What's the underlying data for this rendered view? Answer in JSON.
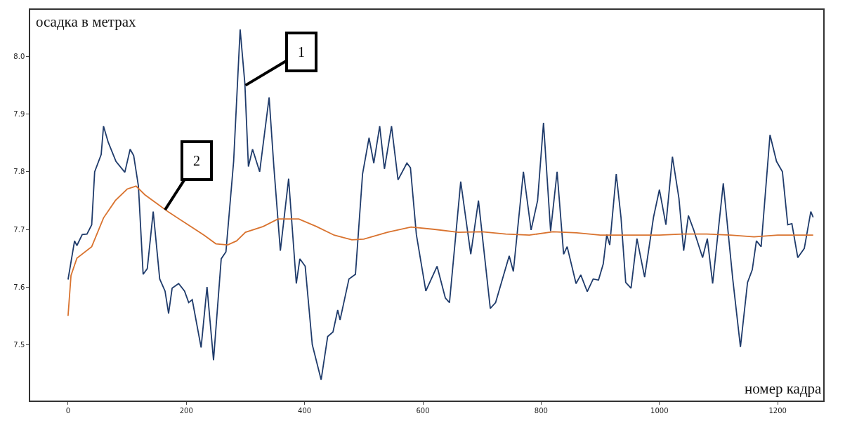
{
  "chart_data": {
    "type": "line",
    "xlabel": "номер кадра",
    "ylabel": "осадка в метрах",
    "xlim": [
      -64,
      1277
    ],
    "ylim": [
      7.403,
      8.081
    ],
    "xticks": [
      0,
      200,
      400,
      600,
      800,
      1000,
      1200
    ],
    "yticks": [
      7.5,
      7.6,
      7.7,
      7.8,
      7.9,
      {
        "value": 8.0,
        "label": "8.0"
      }
    ],
    "marker": "none",
    "line_style": "solid",
    "series": [
      {
        "color": "#1f3b6b",
        "x": [
          0,
          11,
          15,
          24,
          32,
          40,
          45,
          56,
          60,
          68,
          81,
          96,
          105,
          111,
          119,
          127,
          134,
          144,
          155,
          164,
          170,
          176,
          187,
          197,
          204,
          210,
          225,
          235,
          246,
          259,
          267,
          280,
          291,
          299,
          305,
          312,
          324,
          340,
          348,
          359,
          373,
          386,
          392,
          401,
          413,
          428,
          439,
          448,
          456,
          460,
          475,
          486,
          498,
          509,
          517,
          527,
          535,
          547,
          558,
          573,
          579,
          589,
          605,
          624,
          638,
          645,
          664,
          681,
          694,
          714,
          723,
          746,
          753,
          770,
          783,
          794,
          804,
          816,
          827,
          838,
          844,
          859,
          867,
          878,
          888,
          897,
          905,
          911,
          916,
          927,
          935,
          943,
          952,
          962,
          975,
          990,
          1000,
          1011,
          1022,
          1033,
          1041,
          1049,
          1058,
          1073,
          1081,
          1090,
          1108,
          1124,
          1137,
          1149,
          1157,
          1164,
          1172,
          1187,
          1198,
          1208,
          1217,
          1224,
          1234,
          1245,
          1256,
          1260
        ],
        "values": [
          7.613,
          7.68,
          7.672,
          7.691,
          7.692,
          7.708,
          7.8,
          7.83,
          7.879,
          7.851,
          7.818,
          7.799,
          7.839,
          7.828,
          7.775,
          7.622,
          7.632,
          7.731,
          7.614,
          7.593,
          7.554,
          7.598,
          7.606,
          7.593,
          7.573,
          7.578,
          7.495,
          7.6,
          7.473,
          7.649,
          7.661,
          7.818,
          8.047,
          7.953,
          7.809,
          7.839,
          7.8,
          7.929,
          7.809,
          7.663,
          7.788,
          7.606,
          7.649,
          7.636,
          7.5,
          7.439,
          7.514,
          7.522,
          7.56,
          7.543,
          7.614,
          7.622,
          7.796,
          7.859,
          7.815,
          7.879,
          7.805,
          7.879,
          7.786,
          7.815,
          7.807,
          7.691,
          7.593,
          7.636,
          7.581,
          7.573,
          7.783,
          7.657,
          7.75,
          7.563,
          7.573,
          7.654,
          7.627,
          7.8,
          7.699,
          7.75,
          7.885,
          7.697,
          7.8,
          7.657,
          7.67,
          7.606,
          7.621,
          7.592,
          7.614,
          7.612,
          7.64,
          7.691,
          7.673,
          7.796,
          7.721,
          7.608,
          7.598,
          7.684,
          7.617,
          7.721,
          7.769,
          7.708,
          7.826,
          7.754,
          7.663,
          7.724,
          7.699,
          7.651,
          7.684,
          7.606,
          7.78,
          7.614,
          7.496,
          7.608,
          7.63,
          7.68,
          7.67,
          7.864,
          7.818,
          7.8,
          7.708,
          7.71,
          7.651,
          7.667,
          7.731,
          7.721
        ]
      },
      {
        "color": "#d9732f",
        "x": [
          0,
          5,
          15,
          40,
          60,
          80,
          100,
          115,
          130,
          150,
          170,
          200,
          230,
          250,
          270,
          285,
          300,
          330,
          355,
          390,
          420,
          450,
          480,
          500,
          540,
          580,
          620,
          660,
          700,
          740,
          780,
          820,
          860,
          900,
          950,
          1000,
          1040,
          1080,
          1120,
          1160,
          1200,
          1260
        ],
        "values": [
          7.55,
          7.62,
          7.65,
          7.67,
          7.72,
          7.75,
          7.77,
          7.775,
          7.76,
          7.745,
          7.73,
          7.71,
          7.69,
          7.675,
          7.673,
          7.68,
          7.695,
          7.705,
          7.718,
          7.718,
          7.705,
          7.69,
          7.682,
          7.683,
          7.695,
          7.704,
          7.7,
          7.695,
          7.696,
          7.692,
          7.69,
          7.696,
          7.694,
          7.69,
          7.69,
          7.69,
          7.692,
          7.692,
          7.69,
          7.687,
          7.69,
          7.69
        ]
      }
    ],
    "annotations": [
      {
        "text": "1",
        "x": 300,
        "y": 7.95
      },
      {
        "text": "2",
        "x": 164,
        "y": 7.734
      }
    ]
  }
}
